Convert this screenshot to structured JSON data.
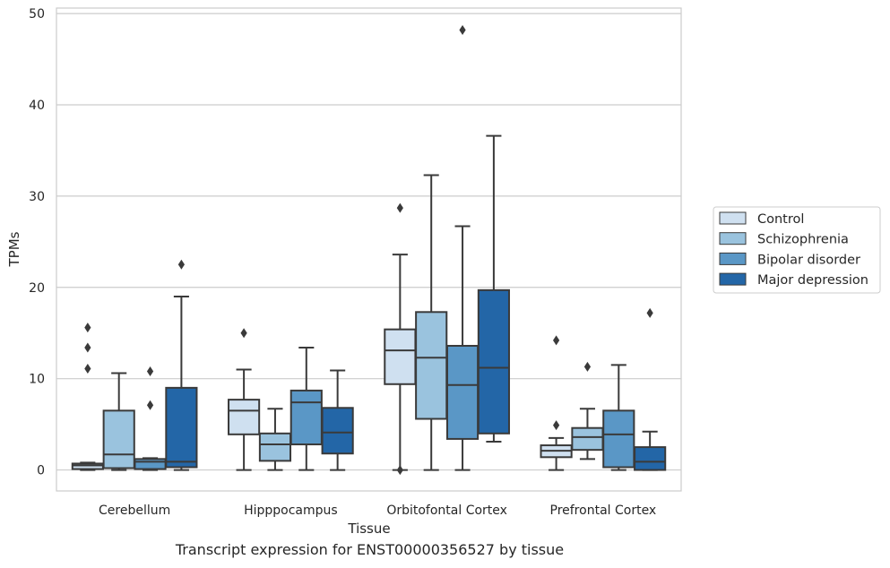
{
  "chart_data": {
    "type": "box",
    "xlabel": "Tissue",
    "ylabel": "TPMs",
    "ylim": [
      -2.3,
      50.6
    ],
    "yticks": [
      0,
      10,
      20,
      30,
      40,
      50
    ],
    "grid": "horizontal",
    "legend_position": "outside-right",
    "categories": [
      "Cerebellum",
      "Hipppocampus",
      "Orbitofontal Cortex",
      "Prefrontal Cortex"
    ],
    "series": [
      {
        "name": "Control",
        "color": "#cfe0f0",
        "boxes": [
          {
            "whislo": 0.0,
            "q1": 0.1,
            "med": 0.5,
            "q3": 0.7,
            "whishi": 0.8,
            "fliers": [
              11.1,
              13.4,
              15.6
            ]
          },
          {
            "whislo": 0.0,
            "q1": 3.9,
            "med": 6.5,
            "q3": 7.7,
            "whishi": 11.0,
            "fliers": [
              15.0
            ]
          },
          {
            "whislo": 0.0,
            "q1": 9.4,
            "med": 13.1,
            "q3": 15.4,
            "whishi": 23.6,
            "fliers": [
              0.0,
              28.7
            ]
          },
          {
            "whislo": 0.0,
            "q1": 1.4,
            "med": 2.1,
            "q3": 2.7,
            "whishi": 3.5,
            "fliers": [
              4.9,
              14.2
            ]
          }
        ]
      },
      {
        "name": "Schizophrenia",
        "color": "#9ac3de",
        "boxes": [
          {
            "whislo": 0.0,
            "q1": 0.2,
            "med": 1.7,
            "q3": 6.5,
            "whishi": 10.6,
            "fliers": []
          },
          {
            "whislo": 0.0,
            "q1": 1.0,
            "med": 2.8,
            "q3": 4.0,
            "whishi": 6.7,
            "fliers": []
          },
          {
            "whislo": 0.0,
            "q1": 5.6,
            "med": 12.3,
            "q3": 17.3,
            "whishi": 32.3,
            "fliers": []
          },
          {
            "whislo": 1.2,
            "q1": 2.2,
            "med": 3.6,
            "q3": 4.6,
            "whishi": 6.7,
            "fliers": [
              11.3
            ]
          }
        ]
      },
      {
        "name": "Bipolar disorder",
        "color": "#5a97c6",
        "boxes": [
          {
            "whislo": 0.0,
            "q1": 0.1,
            "med": 0.9,
            "q3": 1.2,
            "whishi": 1.3,
            "fliers": [
              7.1,
              10.8
            ]
          },
          {
            "whislo": 0.0,
            "q1": 2.8,
            "med": 7.4,
            "q3": 8.7,
            "whishi": 13.4,
            "fliers": []
          },
          {
            "whislo": 0.0,
            "q1": 3.4,
            "med": 9.3,
            "q3": 13.6,
            "whishi": 26.7,
            "fliers": [
              48.2
            ]
          },
          {
            "whislo": 0.0,
            "q1": 0.3,
            "med": 3.9,
            "q3": 6.5,
            "whishi": 11.5,
            "fliers": []
          }
        ]
      },
      {
        "name": "Major depression",
        "color": "#2366a7",
        "boxes": [
          {
            "whislo": 0.0,
            "q1": 0.3,
            "med": 0.9,
            "q3": 9.0,
            "whishi": 19.0,
            "fliers": [
              22.5
            ]
          },
          {
            "whislo": 0.0,
            "q1": 1.8,
            "med": 4.1,
            "q3": 6.8,
            "whishi": 10.9,
            "fliers": []
          },
          {
            "whislo": 3.1,
            "q1": 4.0,
            "med": 11.2,
            "q3": 19.7,
            "whishi": 36.6,
            "fliers": []
          },
          {
            "whislo": 0.0,
            "q1": 0.0,
            "med": 0.9,
            "q3": 2.5,
            "whishi": 4.2,
            "fliers": [
              17.2
            ]
          }
        ]
      }
    ]
  },
  "caption": "Transcript expression for ENST00000356527 by tissue"
}
